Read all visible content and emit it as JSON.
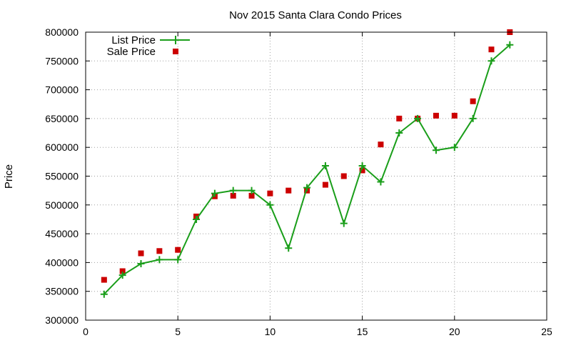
{
  "chart_data": {
    "type": "line",
    "title": "Nov 2015 Santa Clara Condo Prices",
    "xlabel": "",
    "ylabel": "Price",
    "xlim": [
      0,
      25
    ],
    "ylim": [
      300000,
      800000
    ],
    "xticks": [
      0,
      5,
      10,
      15,
      20,
      25
    ],
    "yticks": [
      300000,
      350000,
      400000,
      450000,
      500000,
      550000,
      600000,
      650000,
      700000,
      750000,
      800000
    ],
    "grid": true,
    "legend_position": "top-left",
    "series": [
      {
        "name": "List Price",
        "style": "line-with-plus-markers",
        "color": "#1a9e1a",
        "x": [
          1,
          2,
          3,
          4,
          5,
          6,
          7,
          8,
          9,
          10,
          11,
          12,
          13,
          14,
          15,
          16,
          17,
          18,
          19,
          20,
          21,
          22,
          23
        ],
        "y": [
          345000,
          378000,
          398000,
          405000,
          405000,
          475000,
          520000,
          525000,
          525000,
          500000,
          425000,
          530000,
          568000,
          468000,
          568000,
          540000,
          625000,
          650000,
          595000,
          600000,
          650000,
          750000,
          778000
        ]
      },
      {
        "name": "Sale Price",
        "style": "square-markers",
        "color": "#cc0000",
        "x": [
          1,
          2,
          3,
          4,
          5,
          6,
          7,
          8,
          9,
          10,
          11,
          12,
          13,
          14,
          15,
          16,
          17,
          18,
          19,
          20,
          21,
          22,
          23
        ],
        "y": [
          370000,
          385000,
          416000,
          420000,
          422000,
          480000,
          515000,
          516000,
          516000,
          520000,
          525000,
          525000,
          535000,
          550000,
          560000,
          605000,
          650000,
          650000,
          655000,
          655000,
          680000,
          770000,
          800000
        ]
      }
    ]
  }
}
